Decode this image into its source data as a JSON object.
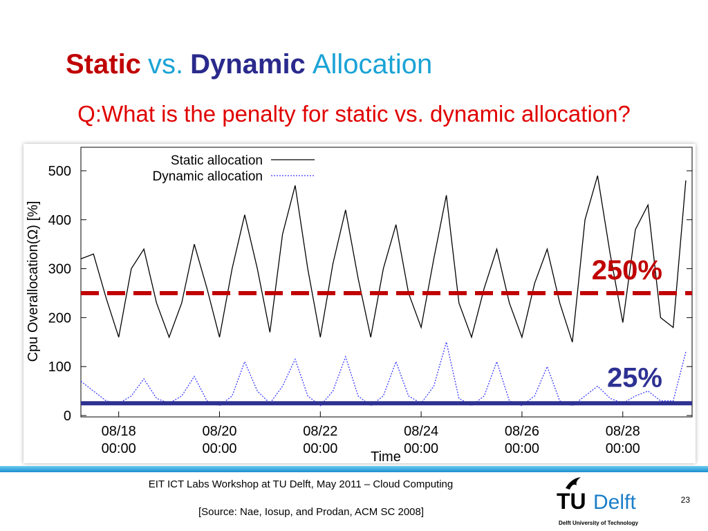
{
  "slide": {
    "title": [
      {
        "text": "Static",
        "color": "#c00000",
        "bold": true
      },
      {
        "text": "vs.",
        "color": "#1aa3d6",
        "bold": false
      },
      {
        "text": "Dynamic",
        "color": "#2a2a8c",
        "bold": true
      },
      {
        "text": "Allocation",
        "color": "#1aa3d6",
        "bold": false
      }
    ],
    "question": "Q:What is the penalty for static vs. dynamic allocation?",
    "footer": "EIT ICT Labs Workshop at TU Delft, May 2011 – Cloud Computing",
    "source": "[Source: Nae, Iosup, and Prodan, ACM SC 2008]",
    "page_number": "23",
    "logo": {
      "tu": "TU",
      "delft": "Delft",
      "university": "Delft University of Technology"
    }
  },
  "chart_data": {
    "type": "line",
    "xlabel": "Time",
    "ylabel": "Cpu Overallocation(Ω) [%]",
    "ylim": [
      0,
      548
    ],
    "yticks": [
      0,
      100,
      200,
      300,
      400,
      500
    ],
    "xlim": [
      "08/17 06:00",
      "08/29 09:00"
    ],
    "xticks": [
      "08/18 00:00",
      "08/20 00:00",
      "08/22 00:00",
      "08/24 00:00",
      "08/26 00:00",
      "08/28 00:00"
    ],
    "x": [
      "08/17 06:00",
      "08/17 12:00",
      "08/17 18:00",
      "08/18 00:00",
      "08/18 06:00",
      "08/18 12:00",
      "08/18 18:00",
      "08/19 00:00",
      "08/19 06:00",
      "08/19 12:00",
      "08/19 18:00",
      "08/20 00:00",
      "08/20 06:00",
      "08/20 12:00",
      "08/20 18:00",
      "08/21 00:00",
      "08/21 06:00",
      "08/21 12:00",
      "08/21 18:00",
      "08/22 00:00",
      "08/22 06:00",
      "08/22 12:00",
      "08/22 18:00",
      "08/23 00:00",
      "08/23 06:00",
      "08/23 12:00",
      "08/23 18:00",
      "08/24 00:00",
      "08/24 06:00",
      "08/24 12:00",
      "08/24 18:00",
      "08/25 00:00",
      "08/25 06:00",
      "08/25 12:00",
      "08/25 18:00",
      "08/26 00:00",
      "08/26 06:00",
      "08/26 12:00",
      "08/26 18:00",
      "08/27 00:00",
      "08/27 06:00",
      "08/27 12:00",
      "08/27 18:00",
      "08/28 00:00",
      "08/28 06:00",
      "08/28 12:00",
      "08/28 18:00",
      "08/29 00:00",
      "08/29 06:00"
    ],
    "series": [
      {
        "name": "Static allocation",
        "color": "#000000",
        "linestyle": "solid",
        "values": [
          320,
          330,
          240,
          160,
          300,
          340,
          230,
          160,
          230,
          350,
          260,
          160,
          300,
          410,
          300,
          170,
          370,
          470,
          300,
          160,
          310,
          420,
          280,
          160,
          300,
          390,
          250,
          180,
          320,
          450,
          230,
          160,
          260,
          340,
          230,
          160,
          270,
          340,
          230,
          150,
          400,
          490,
          330,
          190,
          380,
          430,
          200,
          180,
          480
        ]
      },
      {
        "name": "Dynamic allocation",
        "color": "#3a3aff",
        "linestyle": "dotted",
        "values": [
          70,
          50,
          30,
          25,
          40,
          75,
          35,
          25,
          40,
          80,
          30,
          20,
          40,
          110,
          50,
          25,
          60,
          115,
          40,
          20,
          50,
          120,
          40,
          20,
          40,
          110,
          40,
          25,
          60,
          150,
          35,
          20,
          40,
          110,
          30,
          20,
          40,
          100,
          30,
          20,
          40,
          60,
          35,
          25,
          40,
          50,
          30,
          30,
          130
        ]
      }
    ],
    "annotations": [
      {
        "label": "250%",
        "value": 250,
        "color": "#c00000",
        "linestyle": "dashed"
      },
      {
        "label": "25%",
        "value": 25,
        "color": "#2e3192",
        "linestyle": "solid"
      }
    ]
  }
}
